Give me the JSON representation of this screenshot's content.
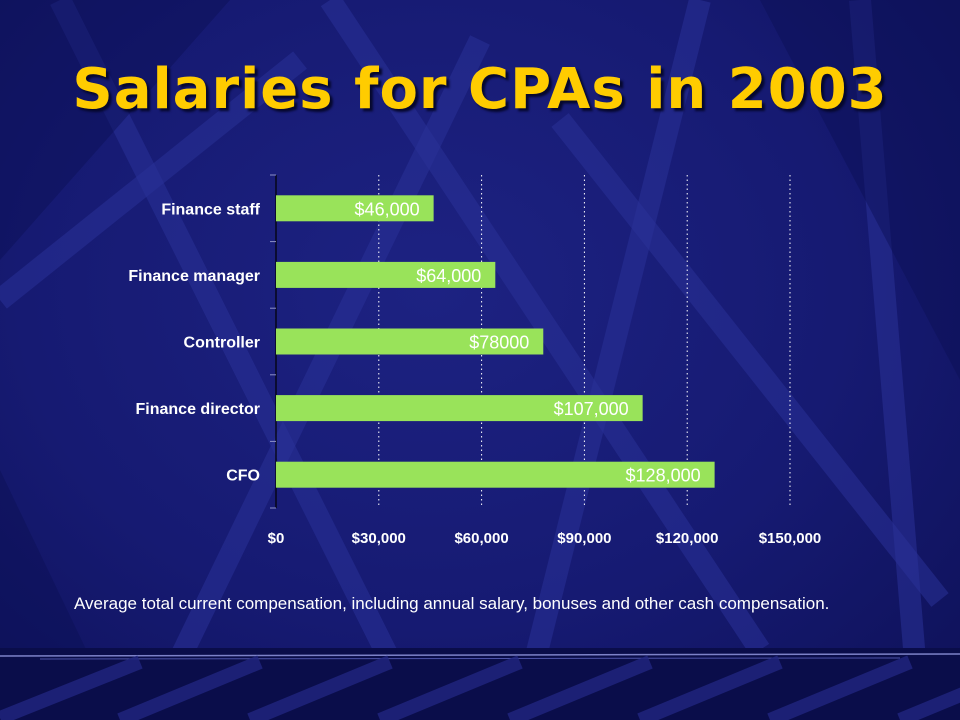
{
  "slide": {
    "title": "Salaries for CPAs in 2003",
    "caption": "Average total current compensation, including annual salary, bonuses and other cash compensation.",
    "colors": {
      "background": "#14176b",
      "title": "#ffcc00",
      "bar": "#99e35a",
      "bar_label": "#ffffff",
      "text": "#ffffff",
      "axis": "#000000"
    }
  },
  "chart_data": {
    "type": "bar",
    "orientation": "horizontal",
    "categories": [
      "Finance staff",
      "Finance manager",
      "Controller",
      "Finance director",
      "CFO"
    ],
    "values": [
      46000,
      64000,
      78000,
      107000,
      128000
    ],
    "data_labels": [
      "$46,000",
      "$64,000",
      "$78000",
      "$107,000",
      "$128,000"
    ],
    "x_ticks": [
      0,
      30000,
      60000,
      90000,
      120000,
      150000
    ],
    "x_tick_labels": [
      "$0",
      "$30,000",
      "$60,000",
      "$90,000",
      "$120,000",
      "$150,000"
    ],
    "xlim": [
      0,
      150000
    ],
    "grid": "vertical dotted",
    "legend": "none"
  }
}
